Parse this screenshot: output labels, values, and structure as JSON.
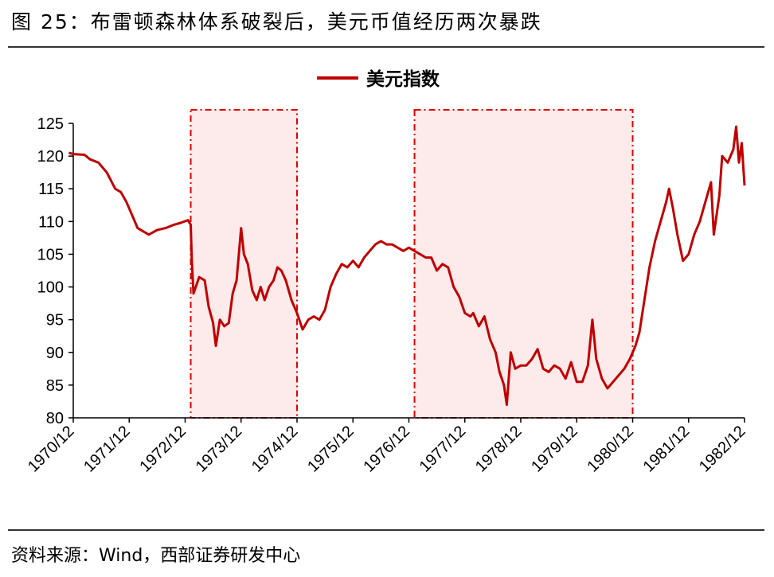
{
  "header": {
    "title": "图 25：布雷顿森林体系破裂后，美元币值经历两次暴跌"
  },
  "footer": {
    "source": "资料来源：Wind，西部证券研发中心"
  },
  "colors": {
    "line": "#c00000",
    "shade_fill": "#fdeaea",
    "shade_border": "#e00000"
  },
  "chart_data": {
    "type": "line",
    "legend": {
      "position": "top-center",
      "entries": [
        "美元指数"
      ]
    },
    "ylim": [
      80,
      125
    ],
    "yticks": [
      80,
      85,
      90,
      95,
      100,
      105,
      110,
      115,
      120,
      125
    ],
    "x_tick_labels": [
      "1970/12",
      "1971/12",
      "1972/12",
      "1973/12",
      "1974/12",
      "1975/12",
      "1976/12",
      "1977/12",
      "1978/12",
      "1979/12",
      "1980/12",
      "1981/12",
      "1982/12"
    ],
    "grid": false,
    "shaded_periods": [
      {
        "start": 1973.1,
        "end": 1975.0
      },
      {
        "start": 1977.1,
        "end": 1981.0
      }
    ],
    "series": [
      {
        "name": "美元指数",
        "points": [
          [
            1970.92,
            120.5
          ],
          [
            1971.0,
            120.3
          ],
          [
            1971.2,
            120.2
          ],
          [
            1971.3,
            119.5
          ],
          [
            1971.45,
            119.0
          ],
          [
            1971.6,
            117.5
          ],
          [
            1971.75,
            115.0
          ],
          [
            1971.85,
            114.5
          ],
          [
            1971.95,
            113.0
          ],
          [
            1972.05,
            111.0
          ],
          [
            1972.15,
            109.0
          ],
          [
            1972.25,
            108.5
          ],
          [
            1972.35,
            108.0
          ],
          [
            1972.5,
            108.7
          ],
          [
            1972.65,
            109.0
          ],
          [
            1972.8,
            109.5
          ],
          [
            1972.92,
            109.8
          ],
          [
            1973.05,
            110.2
          ],
          [
            1973.1,
            109.5
          ],
          [
            1973.12,
            104.0
          ],
          [
            1973.15,
            99.0
          ],
          [
            1973.25,
            101.5
          ],
          [
            1973.35,
            101.0
          ],
          [
            1973.42,
            97.0
          ],
          [
            1973.5,
            94.5
          ],
          [
            1973.55,
            91.0
          ],
          [
            1973.62,
            95.0
          ],
          [
            1973.7,
            94.0
          ],
          [
            1973.78,
            94.5
          ],
          [
            1973.85,
            99.0
          ],
          [
            1973.92,
            101.0
          ],
          [
            1974.0,
            109.0
          ],
          [
            1974.05,
            105.0
          ],
          [
            1974.12,
            103.5
          ],
          [
            1974.2,
            99.5
          ],
          [
            1974.28,
            98.0
          ],
          [
            1974.35,
            100.0
          ],
          [
            1974.42,
            98.0
          ],
          [
            1974.5,
            100.0
          ],
          [
            1974.58,
            101.0
          ],
          [
            1974.65,
            103.0
          ],
          [
            1974.72,
            102.5
          ],
          [
            1974.8,
            101.0
          ],
          [
            1974.9,
            98.0
          ],
          [
            1975.0,
            96.0
          ],
          [
            1975.1,
            93.5
          ],
          [
            1975.2,
            95.0
          ],
          [
            1975.3,
            95.5
          ],
          [
            1975.4,
            95.0
          ],
          [
            1975.5,
            96.5
          ],
          [
            1975.6,
            100.0
          ],
          [
            1975.7,
            102.0
          ],
          [
            1975.8,
            103.5
          ],
          [
            1975.9,
            103.0
          ],
          [
            1976.0,
            104.0
          ],
          [
            1976.1,
            103.0
          ],
          [
            1976.2,
            104.5
          ],
          [
            1976.3,
            105.5
          ],
          [
            1976.4,
            106.5
          ],
          [
            1976.5,
            107.0
          ],
          [
            1976.6,
            106.5
          ],
          [
            1976.7,
            106.5
          ],
          [
            1976.8,
            106.0
          ],
          [
            1976.9,
            105.5
          ],
          [
            1977.0,
            106.0
          ],
          [
            1977.1,
            105.5
          ],
          [
            1977.2,
            105.0
          ],
          [
            1977.3,
            104.5
          ],
          [
            1977.4,
            104.5
          ],
          [
            1977.5,
            102.5
          ],
          [
            1977.6,
            103.5
          ],
          [
            1977.7,
            103.0
          ],
          [
            1977.8,
            100.0
          ],
          [
            1977.9,
            98.5
          ],
          [
            1978.0,
            96.0
          ],
          [
            1978.1,
            95.5
          ],
          [
            1978.15,
            96.0
          ],
          [
            1978.25,
            94.0
          ],
          [
            1978.35,
            95.5
          ],
          [
            1978.45,
            92.0
          ],
          [
            1978.55,
            90.0
          ],
          [
            1978.62,
            87.0
          ],
          [
            1978.7,
            85.0
          ],
          [
            1978.75,
            82.0
          ],
          [
            1978.82,
            90.0
          ],
          [
            1978.9,
            87.5
          ],
          [
            1979.0,
            88.0
          ],
          [
            1979.1,
            88.0
          ],
          [
            1979.2,
            89.0
          ],
          [
            1979.3,
            90.5
          ],
          [
            1979.4,
            87.5
          ],
          [
            1979.5,
            87.0
          ],
          [
            1979.6,
            88.0
          ],
          [
            1979.7,
            87.5
          ],
          [
            1979.8,
            86.0
          ],
          [
            1979.9,
            88.5
          ],
          [
            1980.0,
            85.5
          ],
          [
            1980.1,
            85.5
          ],
          [
            1980.2,
            88.0
          ],
          [
            1980.28,
            95.0
          ],
          [
            1980.35,
            89.0
          ],
          [
            1980.45,
            86.0
          ],
          [
            1980.55,
            84.5
          ],
          [
            1980.65,
            85.5
          ],
          [
            1980.75,
            86.5
          ],
          [
            1980.85,
            87.5
          ],
          [
            1980.95,
            89.0
          ],
          [
            1981.05,
            91.0
          ],
          [
            1981.12,
            93.0
          ],
          [
            1981.2,
            97.5
          ],
          [
            1981.3,
            103.0
          ],
          [
            1981.4,
            107.0
          ],
          [
            1981.5,
            110.0
          ],
          [
            1981.6,
            113.0
          ],
          [
            1981.65,
            115.0
          ],
          [
            1981.72,
            112.0
          ],
          [
            1981.8,
            108.0
          ],
          [
            1981.9,
            104.0
          ],
          [
            1982.0,
            105.0
          ],
          [
            1982.1,
            108.0
          ],
          [
            1982.2,
            110.0
          ],
          [
            1982.3,
            113.0
          ],
          [
            1982.4,
            116.0
          ],
          [
            1982.45,
            108.0
          ],
          [
            1982.55,
            114.0
          ],
          [
            1982.6,
            120.0
          ],
          [
            1982.7,
            119.0
          ],
          [
            1982.8,
            121.0
          ],
          [
            1982.85,
            124.5
          ],
          [
            1982.9,
            119.0
          ],
          [
            1982.95,
            122.0
          ],
          [
            1983.0,
            115.5
          ]
        ]
      }
    ]
  }
}
